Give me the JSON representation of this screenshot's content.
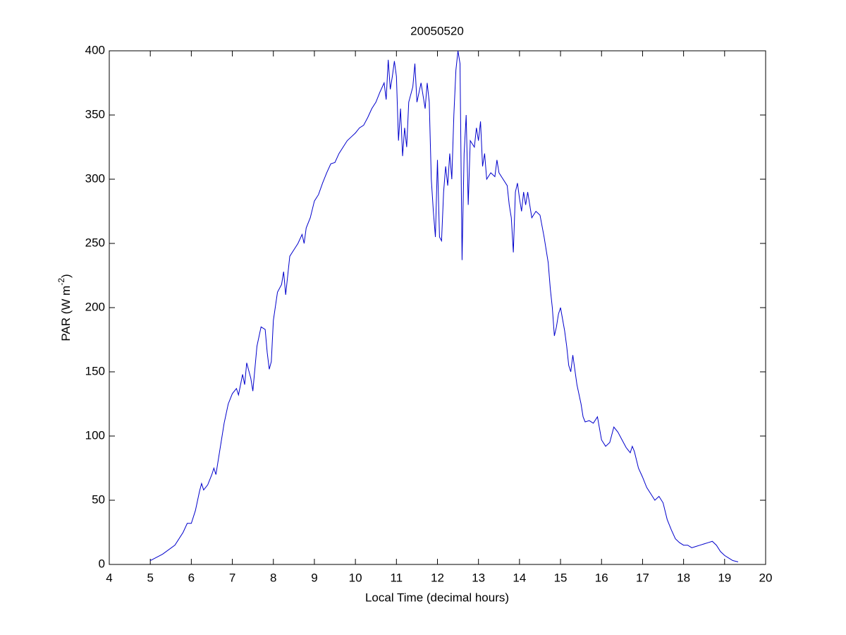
{
  "chart_data": {
    "type": "line",
    "title": "20050520",
    "xlabel": "Local Time (decimal hours)",
    "ylabel": {
      "text": "PAR (W m",
      "superscript": "-2",
      "suffix": ")"
    },
    "xlim": [
      4,
      20
    ],
    "xticks": [
      4,
      5,
      6,
      7,
      8,
      9,
      10,
      11,
      12,
      13,
      14,
      15,
      16,
      17,
      18,
      19,
      20
    ],
    "ylim": [
      0,
      400
    ],
    "yticks": [
      0,
      50,
      100,
      150,
      200,
      250,
      300,
      350,
      400
    ],
    "grid": false,
    "x": [
      5.0,
      5.3,
      5.6,
      5.8,
      5.9,
      6.0,
      6.1,
      6.2,
      6.25,
      6.3,
      6.4,
      6.5,
      6.55,
      6.6,
      6.7,
      6.8,
      6.9,
      7.0,
      7.1,
      7.15,
      7.25,
      7.3,
      7.35,
      7.45,
      7.5,
      7.6,
      7.7,
      7.8,
      7.85,
      7.9,
      7.95,
      8.0,
      8.1,
      8.2,
      8.25,
      8.3,
      8.35,
      8.4,
      8.5,
      8.6,
      8.7,
      8.75,
      8.8,
      8.9,
      9.0,
      9.1,
      9.2,
      9.3,
      9.4,
      9.5,
      9.6,
      9.7,
      9.8,
      9.9,
      10.0,
      10.1,
      10.2,
      10.3,
      10.4,
      10.5,
      10.6,
      10.7,
      10.75,
      10.8,
      10.85,
      10.9,
      10.95,
      11.0,
      11.05,
      11.1,
      11.15,
      11.2,
      11.25,
      11.3,
      11.4,
      11.45,
      11.5,
      11.6,
      11.7,
      11.75,
      11.8,
      11.85,
      11.9,
      11.95,
      12.0,
      12.05,
      12.1,
      12.15,
      12.2,
      12.25,
      12.3,
      12.35,
      12.4,
      12.45,
      12.5,
      12.55,
      12.6,
      12.65,
      12.7,
      12.75,
      12.8,
      12.9,
      12.95,
      13.0,
      13.05,
      13.1,
      13.15,
      13.2,
      13.3,
      13.4,
      13.45,
      13.5,
      13.6,
      13.7,
      13.75,
      13.8,
      13.85,
      13.9,
      13.95,
      14.0,
      14.05,
      14.1,
      14.15,
      14.2,
      14.3,
      14.4,
      14.5,
      14.6,
      14.7,
      14.75,
      14.8,
      14.85,
      14.9,
      14.95,
      15.0,
      15.1,
      15.15,
      15.2,
      15.25,
      15.3,
      15.4,
      15.5,
      15.55,
      15.6,
      15.7,
      15.8,
      15.9,
      16.0,
      16.1,
      16.2,
      16.3,
      16.4,
      16.5,
      16.6,
      16.7,
      16.75,
      16.8,
      16.9,
      17.0,
      17.1,
      17.2,
      17.3,
      17.4,
      17.5,
      17.6,
      17.7,
      17.8,
      17.9,
      18.0,
      18.1,
      18.2,
      18.3,
      18.4,
      18.5,
      18.6,
      18.7,
      18.8,
      18.9,
      19.0,
      19.1,
      19.2,
      19.33
    ],
    "series": [
      {
        "name": "PAR",
        "color": "#0000cc",
        "values": [
          3,
          8,
          15,
          25,
          32,
          32,
          42,
          57,
          63,
          58,
          62,
          70,
          75,
          70,
          90,
          110,
          125,
          133,
          137,
          132,
          148,
          140,
          157,
          145,
          135,
          170,
          185,
          183,
          165,
          152,
          158,
          190,
          212,
          218,
          228,
          210,
          225,
          240,
          245,
          250,
          257,
          250,
          262,
          270,
          283,
          288,
          297,
          305,
          312,
          313,
          320,
          325,
          330,
          333,
          336,
          340,
          342,
          348,
          355,
          360,
          368,
          375,
          362,
          393,
          370,
          380,
          392,
          380,
          330,
          355,
          318,
          340,
          325,
          360,
          372,
          390,
          360,
          375,
          355,
          375,
          360,
          300,
          275,
          255,
          315,
          255,
          252,
          290,
          310,
          295,
          320,
          300,
          350,
          385,
          400,
          390,
          237,
          320,
          350,
          280,
          330,
          325,
          340,
          330,
          345,
          310,
          320,
          300,
          305,
          302,
          315,
          305,
          300,
          295,
          280,
          270,
          243,
          290,
          297,
          285,
          275,
          290,
          280,
          290,
          270,
          275,
          272,
          255,
          235,
          215,
          200,
          178,
          185,
          195,
          200,
          182,
          170,
          155,
          150,
          163,
          140,
          125,
          115,
          111,
          112,
          110,
          115,
          97,
          92,
          95,
          107,
          103,
          97,
          91,
          87,
          92,
          88,
          75,
          68,
          60,
          55,
          50,
          53,
          48,
          35,
          27,
          20,
          17,
          15,
          15,
          13,
          14,
          15,
          16,
          17,
          18,
          15,
          10,
          7,
          5,
          3,
          2
        ]
      }
    ]
  }
}
